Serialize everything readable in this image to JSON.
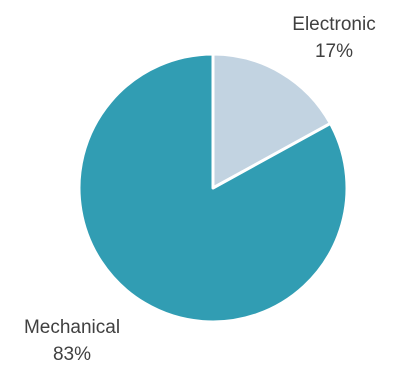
{
  "chart_data": {
    "type": "pie",
    "categories": [
      "Electronic",
      "Mechanical"
    ],
    "values": [
      17,
      83
    ],
    "value_labels": [
      "17%",
      "83%"
    ],
    "colors": [
      "#c2d3e1",
      "#319db3"
    ],
    "start": "12 o'clock",
    "direction": "clockwise",
    "slice_border_color": "#ffffff",
    "legend": "none"
  }
}
